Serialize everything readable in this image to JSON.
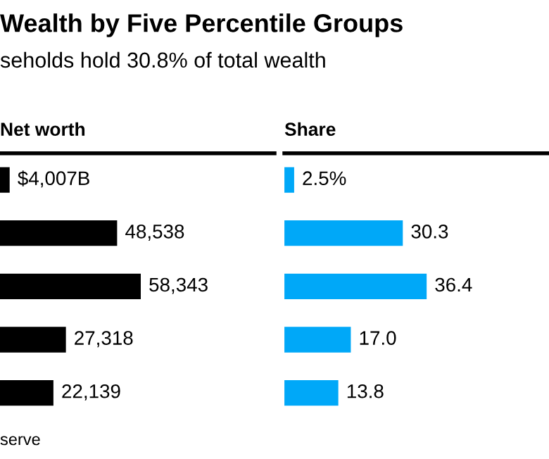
{
  "chart_data": [
    {
      "type": "bar",
      "orientation": "horizontal",
      "title": "Wealth by Five Percentile Groups",
      "subtitle": "seholds hold 30.8% of total wealth",
      "xlabel": "Net worth",
      "categories": [
        null,
        null,
        null,
        null,
        null
      ],
      "series": [
        {
          "color": "#000000",
          "values": [
            4007,
            48538,
            58343,
            27318,
            22139
          ],
          "value_labels": [
            "$4,007B",
            "48,538",
            "58,343",
            "27,318",
            "22,139"
          ]
        }
      ],
      "annotations": [
        "serve"
      ],
      "grid": false,
      "legend": false
    },
    {
      "type": "bar",
      "orientation": "horizontal",
      "xlabel": "Share",
      "categories": [
        null,
        null,
        null,
        null,
        null
      ],
      "series": [
        {
          "color": "#00a8f8",
          "values": [
            2.5,
            30.3,
            36.4,
            17.0,
            13.8
          ],
          "value_labels": [
            "2.5%",
            "30.3",
            "36.4",
            "17.0",
            "13.8"
          ]
        }
      ],
      "grid": false,
      "legend": false
    }
  ]
}
